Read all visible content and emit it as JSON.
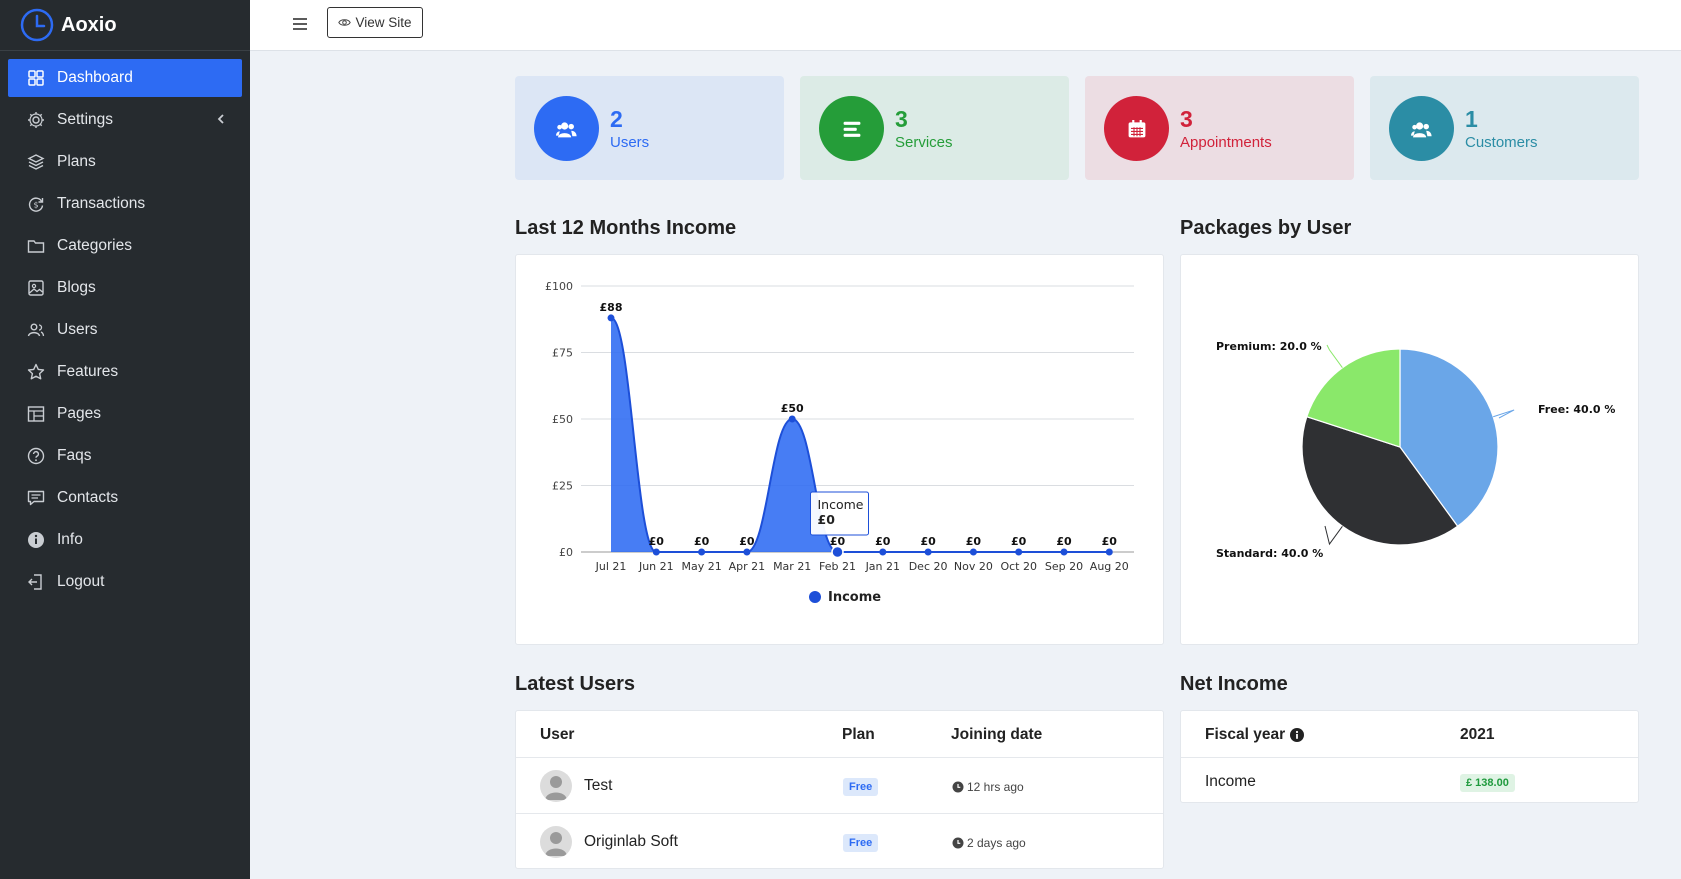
{
  "app": {
    "name": "Aoxio"
  },
  "sidebar": {
    "items": [
      {
        "label": "Dashboard",
        "icon": "grid-icon",
        "active": true
      },
      {
        "label": "Settings",
        "icon": "gear-icon",
        "has_submenu": true
      },
      {
        "label": "Plans",
        "icon": "layers-icon"
      },
      {
        "label": "Transactions",
        "icon": "currency-cycle-icon"
      },
      {
        "label": "Categories",
        "icon": "folder-icon"
      },
      {
        "label": "Blogs",
        "icon": "image-icon"
      },
      {
        "label": "Users",
        "icon": "users-icon"
      },
      {
        "label": "Features",
        "icon": "star-icon"
      },
      {
        "label": "Pages",
        "icon": "layout-icon"
      },
      {
        "label": "Faqs",
        "icon": "question-icon"
      },
      {
        "label": "Contacts",
        "icon": "message-icon"
      },
      {
        "label": "Info",
        "icon": "info-icon"
      },
      {
        "label": "Logout",
        "icon": "logout-icon"
      }
    ]
  },
  "topbar": {
    "view_site_label": "View Site"
  },
  "stats": [
    {
      "value": "2",
      "label": "Users",
      "icon": "users-icon",
      "color": "#2d6bf3",
      "bg": "#dce6f5"
    },
    {
      "value": "3",
      "label": "Services",
      "icon": "list-icon",
      "color": "#259d39",
      "bg": "#dcebe6"
    },
    {
      "value": "3",
      "label": "Appointments",
      "icon": "calendar-icon",
      "color": "#d1223a",
      "bg": "#ecdde3"
    },
    {
      "value": "1",
      "label": "Customers",
      "icon": "users-icon",
      "color": "#2b8da5",
      "bg": "#dce9ee"
    }
  ],
  "income_section": {
    "title": "Last 12 Months Income"
  },
  "packages_section": {
    "title": "Packages by User"
  },
  "chart_data": [
    {
      "type": "area",
      "categories": [
        "Jul 21",
        "Jun 21",
        "May 21",
        "Apr 21",
        "Mar 21",
        "Feb 21",
        "Jan 21",
        "Dec 20",
        "Nov 20",
        "Oct 20",
        "Sep 20",
        "Aug 20"
      ],
      "series": [
        {
          "name": "Income",
          "values": [
            88,
            0,
            0,
            0,
            50,
            0,
            0,
            0,
            0,
            0,
            0,
            0
          ]
        }
      ],
      "data_labels": [
        "£88",
        "£0",
        "£0",
        "£0",
        "£50",
        "£0",
        "£0",
        "£0",
        "£0",
        "£0",
        "£0",
        "£0"
      ],
      "yticks": [
        "£0",
        "£25",
        "£50",
        "£75",
        "£100"
      ],
      "ylim": [
        0,
        100
      ],
      "grid": true,
      "legend": "bottom",
      "color": "#2d6bf3",
      "tooltip": {
        "category": "Feb 21",
        "title": "Income",
        "value": "£0"
      }
    },
    {
      "type": "pie",
      "slices": [
        {
          "label": "Free: 40.0 %",
          "name": "Free",
          "value": 40.0,
          "color": "#6aa6e8"
        },
        {
          "label": "Standard: 40.0 %",
          "name": "Standard",
          "value": 40.0,
          "color": "#2f3033"
        },
        {
          "label": "Premium: 20.0 %",
          "name": "Premium",
          "value": 20.0,
          "color": "#8ae86a"
        }
      ]
    }
  ],
  "latest_users": {
    "title": "Latest Users",
    "columns": [
      "User",
      "Plan",
      "Joining date"
    ],
    "rows": [
      {
        "name": "Test",
        "plan": "Free",
        "joined": "12 hrs ago"
      },
      {
        "name": "Originlab Soft",
        "plan": "Free",
        "joined": "2 days ago"
      }
    ]
  },
  "net_income": {
    "title": "Net Income",
    "columns": [
      "Fiscal year",
      "2021"
    ],
    "rows": [
      {
        "label": "Income",
        "value": "£ 138.00"
      }
    ]
  }
}
